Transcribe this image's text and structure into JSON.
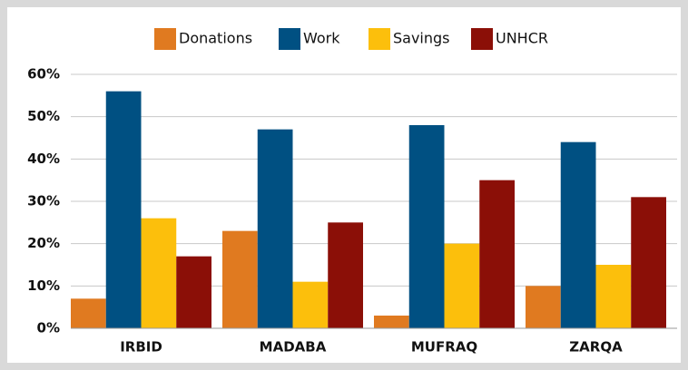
{
  "chart_data": {
    "type": "bar",
    "categories": [
      "IRBID",
      "MADABA",
      "MUFRAQ",
      "ZARQA"
    ],
    "series": [
      {
        "name": "Donations",
        "color": "#e07a20",
        "values": [
          7,
          23,
          3,
          10
        ]
      },
      {
        "name": "Work",
        "color": "#005082",
        "values": [
          56,
          47,
          48,
          44
        ]
      },
      {
        "name": "Savings",
        "color": "#fcbf0c",
        "values": [
          26,
          11,
          20,
          15
        ]
      },
      {
        "name": "UNHCR",
        "color": "#8b0f07",
        "values": [
          17,
          25,
          35,
          31
        ]
      }
    ],
    "ylim": [
      0,
      60
    ],
    "yticks": [
      {
        "value": 0,
        "label": "0%"
      },
      {
        "value": 10,
        "label": "10%"
      },
      {
        "value": 20,
        "label": "20%"
      },
      {
        "value": 30,
        "label": "30%"
      },
      {
        "value": 40,
        "label": "40%"
      },
      {
        "value": 50,
        "label": "50%"
      },
      {
        "value": 60,
        "label": "60%"
      }
    ],
    "grid": true,
    "legend": "top"
  }
}
